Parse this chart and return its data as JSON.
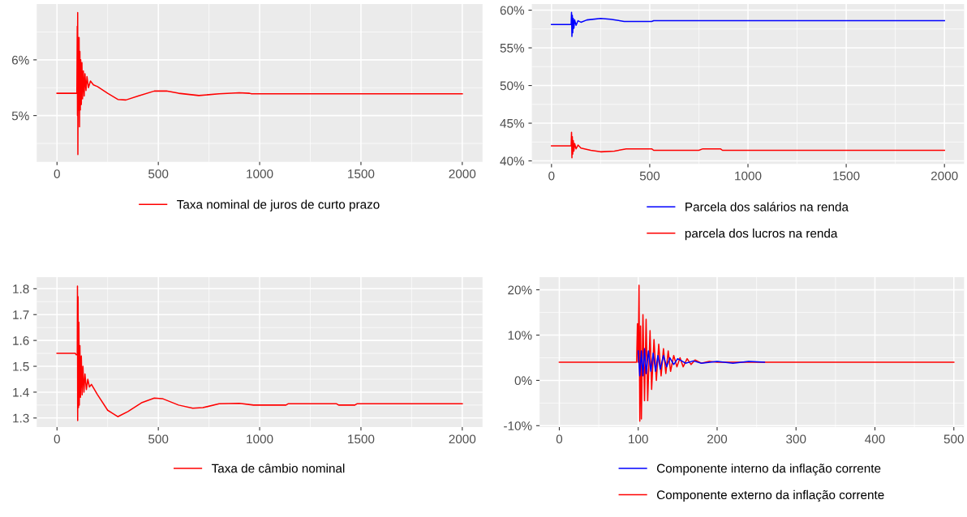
{
  "chart_data": [
    {
      "type": "line",
      "legend": "bottom",
      "grid": true,
      "xlim": [
        -100,
        2100
      ],
      "xticks": [
        0,
        500,
        1000,
        1500,
        2000
      ],
      "ylim": [
        4.17,
        7.0
      ],
      "yticks": [
        {
          "value": 5,
          "label": "5%"
        },
        {
          "value": 6,
          "label": "6%"
        }
      ],
      "series": [
        {
          "name": "Taxa nominal de juros de curto prazo",
          "color": "#ff0000",
          "x": [
            0,
            98,
            100,
            101,
            102,
            103,
            105,
            107,
            109,
            111,
            113,
            115,
            117,
            120,
            123,
            126,
            130,
            134,
            138,
            143,
            148,
            155,
            165,
            180,
            200,
            250,
            300,
            340,
            400,
            480,
            540,
            600,
            700,
            800,
            900,
            950,
            960,
            2000
          ],
          "values": [
            5.4,
            5.4,
            6.6,
            5.0,
            6.85,
            4.3,
            6.4,
            5.1,
            6.4,
            4.8,
            6.15,
            5.1,
            6.0,
            5.2,
            5.95,
            5.3,
            5.8,
            5.35,
            5.75,
            5.45,
            5.7,
            5.5,
            5.62,
            5.55,
            5.52,
            5.4,
            5.29,
            5.28,
            5.35,
            5.44,
            5.44,
            5.4,
            5.36,
            5.39,
            5.41,
            5.4,
            5.39,
            5.39
          ]
        }
      ]
    },
    {
      "type": "line",
      "legend": "bottom",
      "grid": true,
      "xlim": [
        -100,
        2100
      ],
      "xticks": [
        0,
        500,
        1000,
        1500,
        2000
      ],
      "ylim": [
        39.6,
        60.8
      ],
      "yticks": [
        {
          "value": 40,
          "label": "40%"
        },
        {
          "value": 45,
          "label": "45%"
        },
        {
          "value": 50,
          "label": "50%"
        },
        {
          "value": 55,
          "label": "55%"
        },
        {
          "value": 60,
          "label": "60%"
        }
      ],
      "series": [
        {
          "name": "Parcela dos salários na renda",
          "color": "#0000ff",
          "x": [
            0,
            100,
            102,
            104,
            106,
            108,
            111,
            114,
            118,
            125,
            135,
            150,
            180,
            250,
            300,
            370,
            510,
            520,
            2000
          ],
          "values": [
            58.1,
            58.1,
            59.7,
            56.5,
            59.3,
            57.0,
            58.9,
            57.6,
            58.7,
            58.0,
            58.6,
            58.4,
            58.7,
            58.9,
            58.8,
            58.5,
            58.5,
            58.6,
            58.6
          ]
        },
        {
          "name": "parcela dos lucros na renda",
          "color": "#ff0000",
          "x": [
            0,
            100,
            102,
            104,
            106,
            108,
            111,
            114,
            118,
            125,
            135,
            150,
            200,
            250,
            320,
            380,
            510,
            520,
            750,
            770,
            860,
            870,
            2000
          ],
          "values": [
            42.0,
            42.0,
            43.8,
            40.4,
            43.2,
            40.9,
            42.7,
            41.3,
            42.3,
            41.6,
            42.1,
            41.7,
            41.4,
            41.2,
            41.3,
            41.6,
            41.6,
            41.4,
            41.4,
            41.6,
            41.6,
            41.4,
            41.4
          ]
        }
      ]
    },
    {
      "type": "line",
      "legend": "bottom",
      "grid": true,
      "xlim": [
        -100,
        2100
      ],
      "xticks": [
        0,
        500,
        1000,
        1500,
        2000
      ],
      "ylim": [
        1.265,
        1.845
      ],
      "yticks": [
        1.3,
        1.4,
        1.5,
        1.6,
        1.7,
        1.8
      ],
      "series": [
        {
          "name": "Taxa de câmbio nominal",
          "color": "#ff0000",
          "x": [
            0,
            90,
            95,
            100,
            101,
            102,
            104,
            106,
            108,
            110,
            113,
            116,
            120,
            124,
            128,
            133,
            138,
            145,
            152,
            160,
            170,
            200,
            250,
            300,
            350,
            420,
            480,
            520,
            600,
            670,
            720,
            800,
            900,
            970,
            1130,
            1140,
            1380,
            1390,
            1470,
            1480,
            2000
          ],
          "values": [
            1.55,
            1.55,
            1.545,
            1.545,
            1.81,
            1.29,
            1.77,
            1.34,
            1.67,
            1.35,
            1.58,
            1.38,
            1.54,
            1.39,
            1.5,
            1.4,
            1.47,
            1.41,
            1.45,
            1.42,
            1.43,
            1.39,
            1.33,
            1.305,
            1.325,
            1.36,
            1.377,
            1.375,
            1.35,
            1.338,
            1.34,
            1.355,
            1.357,
            1.35,
            1.35,
            1.355,
            1.355,
            1.35,
            1.35,
            1.355,
            1.355
          ]
        }
      ]
    },
    {
      "type": "line",
      "legend": "bottom",
      "grid": true,
      "xlim": [
        -25,
        513
      ],
      "xticks": [
        0,
        100,
        200,
        300,
        400,
        500
      ],
      "ylim": [
        -10.3,
        22.8
      ],
      "yticks": [
        {
          "value": -10,
          "label": "-10%"
        },
        {
          "value": 0,
          "label": "0%"
        },
        {
          "value": 10,
          "label": "10%"
        },
        {
          "value": 20,
          "label": "20%"
        }
      ],
      "series": [
        {
          "name": "Componente interno da inflação corrente",
          "color": "#0000ff",
          "x": [
            100,
            102,
            104,
            106,
            108,
            110,
            113,
            116,
            119,
            122,
            125,
            128,
            132,
            136,
            140,
            145,
            150,
            160,
            170,
            180,
            200,
            220,
            240,
            260
          ],
          "values": [
            6.5,
            1,
            6.5,
            1,
            7,
            1.5,
            6.5,
            2,
            6,
            2,
            5.5,
            2.5,
            5.5,
            3,
            5,
            3.5,
            4.8,
            3.8,
            4.3,
            3.8,
            4.2,
            3.8,
            4.2,
            4
          ]
        },
        {
          "name": "Componente externo da inflação corrente",
          "color": "#ff0000",
          "x": [
            0,
            98,
            99,
            100,
            101,
            102,
            103,
            104,
            106,
            108,
            110,
            112,
            115,
            117,
            120,
            123,
            126,
            129,
            132,
            135,
            138,
            141,
            145,
            149,
            153,
            157,
            162,
            167,
            172,
            180,
            190,
            200,
            500
          ],
          "values": [
            4,
            4,
            12.5,
            4,
            21,
            -9,
            12,
            -8.5,
            14.5,
            -4.5,
            13.5,
            -4.5,
            11,
            -2,
            9,
            0,
            8,
            1,
            7,
            1.5,
            6.5,
            2,
            5.5,
            3,
            5,
            3,
            4.8,
            3.5,
            4.5,
            3.8,
            4.2,
            4,
            4
          ]
        }
      ]
    }
  ]
}
